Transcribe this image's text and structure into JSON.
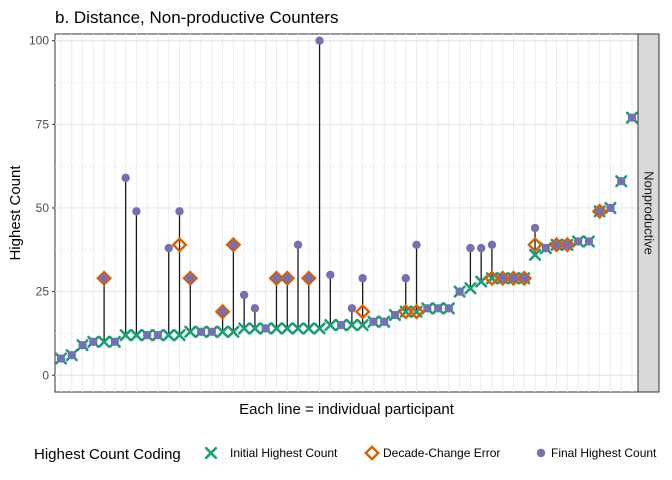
{
  "chart_data": {
    "type": "scatter",
    "title": "b. Distance, Non-productive Counters",
    "xlabel": "Each line = individual participant",
    "ylabel": "Highest Count",
    "ylim": [
      -5,
      102
    ],
    "y_ticks": [
      0,
      25,
      50,
      75,
      100
    ],
    "facet_label": "Nonproductive",
    "grid": true,
    "legend": {
      "title": "Highest Count Coding",
      "position": "bottom",
      "entries": [
        {
          "name": "Initial Highest Count",
          "color": "#1b9e77",
          "shape": "x"
        },
        {
          "name": "Decade-Change Error",
          "color": "#d95f02",
          "shape": "diamond"
        },
        {
          "name": "Final Highest Count",
          "color": "#7570b3",
          "shape": "circle"
        }
      ]
    },
    "participants": [
      {
        "initial": 5,
        "final": 5
      },
      {
        "initial": 6,
        "final": 6
      },
      {
        "initial": 9,
        "final": 9
      },
      {
        "initial": 10,
        "final": 10
      },
      {
        "initial": 10,
        "final": 29,
        "decade": 29
      },
      {
        "initial": 10,
        "final": 10
      },
      {
        "initial": 12,
        "final": 59
      },
      {
        "initial": 12,
        "final": 49
      },
      {
        "initial": 12,
        "final": 12
      },
      {
        "initial": 12,
        "final": 12
      },
      {
        "initial": 12,
        "final": 38
      },
      {
        "initial": 12,
        "final": 49,
        "decade": 39
      },
      {
        "initial": 13,
        "final": 29,
        "decade": 29
      },
      {
        "initial": 13,
        "final": 13
      },
      {
        "initial": 13,
        "final": 13
      },
      {
        "initial": 13,
        "final": 19,
        "decade": 19
      },
      {
        "initial": 13,
        "final": 39,
        "decade": 39
      },
      {
        "initial": 14,
        "final": 24
      },
      {
        "initial": 14,
        "final": 20
      },
      {
        "initial": 14,
        "final": 14
      },
      {
        "initial": 14,
        "final": 29,
        "decade": 29
      },
      {
        "initial": 14,
        "final": 29,
        "decade": 29
      },
      {
        "initial": 14,
        "final": 39
      },
      {
        "initial": 14,
        "final": 29,
        "decade": 29
      },
      {
        "initial": 14,
        "final": 100
      },
      {
        "initial": 15,
        "final": 30
      },
      {
        "initial": 15,
        "final": 15
      },
      {
        "initial": 15,
        "final": 20
      },
      {
        "initial": 15,
        "final": 29,
        "decade": 19
      },
      {
        "initial": 16,
        "final": 16
      },
      {
        "initial": 16,
        "final": 16
      },
      {
        "initial": 18,
        "final": 18
      },
      {
        "initial": 19,
        "final": 29,
        "decade": 19
      },
      {
        "initial": 19,
        "final": 39,
        "decade": 19
      },
      {
        "initial": 20,
        "final": 20
      },
      {
        "initial": 20,
        "final": 20
      },
      {
        "initial": 20,
        "final": 20
      },
      {
        "initial": 25,
        "final": 25
      },
      {
        "initial": 26,
        "final": 38
      },
      {
        "initial": 28,
        "final": 38
      },
      {
        "initial": 29,
        "final": 39,
        "decade": 29
      },
      {
        "initial": 29,
        "final": 29,
        "decade": 29
      },
      {
        "initial": 29,
        "final": 29,
        "decade": 29
      },
      {
        "initial": 29,
        "final": 29,
        "decade": 29
      },
      {
        "initial": 36,
        "final": 44,
        "decade": 39
      },
      {
        "initial": 38,
        "final": 38
      },
      {
        "initial": 39,
        "final": 39,
        "decade": 39
      },
      {
        "initial": 39,
        "final": 39,
        "decade": 39
      },
      {
        "initial": 40,
        "final": 40
      },
      {
        "initial": 40,
        "final": 40
      },
      {
        "initial": 49,
        "final": 49,
        "decade": 49
      },
      {
        "initial": 50,
        "final": 50
      },
      {
        "initial": 58,
        "final": 58
      },
      {
        "initial": 77,
        "final": 77
      }
    ]
  }
}
